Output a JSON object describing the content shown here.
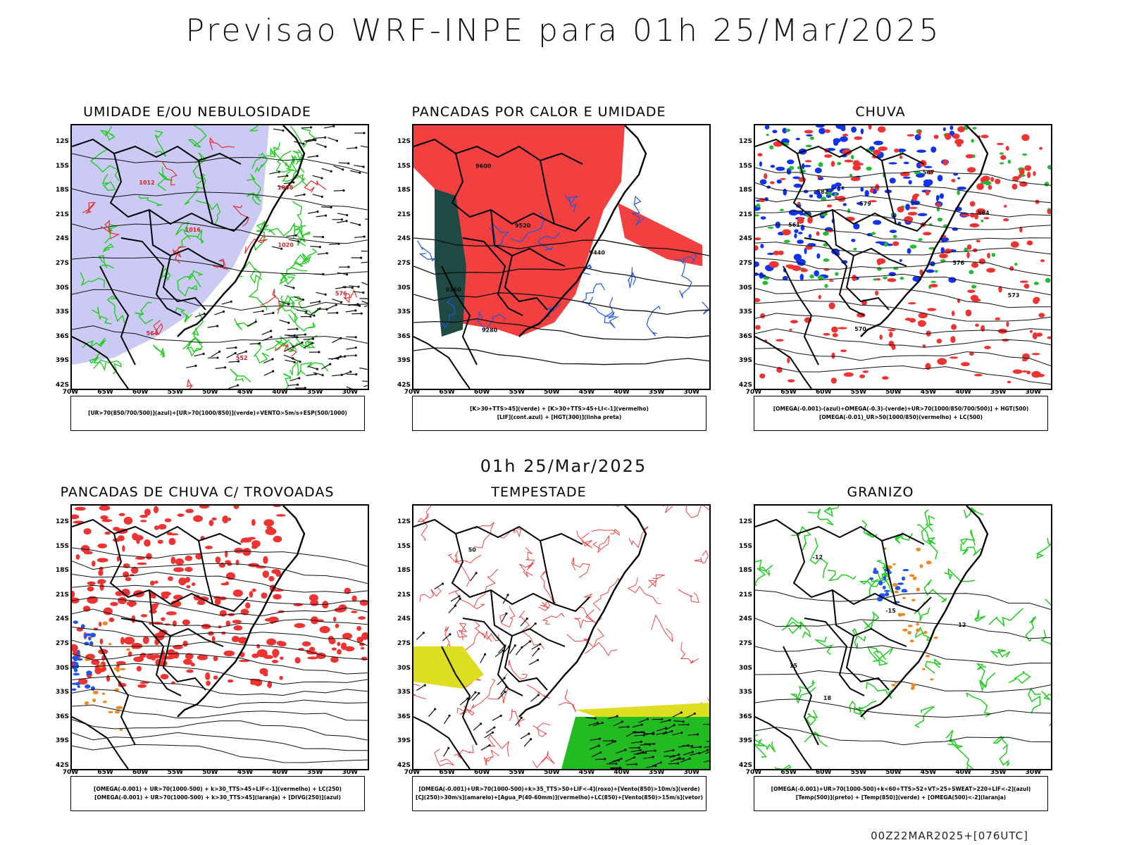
{
  "title": "Previsao WRF-INPE  para 01h 25/Mar/2025",
  "mid_title": "01h 25/Mar/2025",
  "footer": "00Z22MAR2025+[076UTC]",
  "lat_labels": [
    "12S",
    "15S",
    "18S",
    "21S",
    "24S",
    "27S",
    "30S",
    "33S",
    "36S",
    "39S",
    "42S"
  ],
  "lon_labels": [
    "70W",
    "65W",
    "60W",
    "55W",
    "50W",
    "45W",
    "40W",
    "35W",
    "30W"
  ],
  "panels": [
    {
      "title": "UMIDADE E/OU NEBULOSIDADE",
      "legend": [
        "[UR>70(850/700/500)](azul)+[UR>70(1000/850)](verde)+VENTO>5m/s+ESP(500/1000)"
      ],
      "contour_labels": [
        "1012",
        "1016",
        "1020",
        "576",
        "564",
        "552",
        "1008"
      ]
    },
    {
      "title": "PANCADAS POR CALOR E UMIDADE",
      "legend": [
        "[K>30+TTS>45](verde) + [K>30+TTS>45+LI<-1](vermelho)",
        "[LIF](cont.azul) + [HGT(300)](linha preta)"
      ],
      "contour_labels": [
        "9600",
        "9520",
        "9440",
        "9360",
        "9280"
      ]
    },
    {
      "title": "CHUVA",
      "legend": [
        "[OMEGA(-0.001)-(azul)+OMEGA(-0.3)-(verde)+UR>70(1000/850/700/500)] + HGT(500)",
        "[OMEGA(-0.01)_UR>50(1000/850)(vermelho) + LC(500)"
      ],
      "contour_labels": [
        "582",
        "579",
        "576",
        "573",
        "570",
        "567",
        "564",
        "561"
      ]
    },
    {
      "title": "PANCADAS DE CHUVA C/ TROVOADAS",
      "legend": [
        "[OMEGA(-0.001) + UR>70(1000-500) + k>30_TTS>45+LIF<-1](vermelho) + LC(250)",
        "[OMEGA(-0.001) + UR>70(1000-500) + k>30_TTS>45](laranja) + [DIVG(250)](azul)"
      ],
      "contour_labels": []
    },
    {
      "title": "TEMPESTADE",
      "legend": [
        "[OMEGA(-0.001)+UR>70(1000-500)+k>35_TTS>50+LIF<-4](roxo)+[Vento(850)>10m/s](verde)",
        "[CJ(250)>30m/s](amarelo)+[Agua_P(40-60mm)](vermelho)+LC(850)+[Vento(850)>15m/s](vetor)"
      ],
      "contour_labels": [
        "50"
      ]
    },
    {
      "title": "GRANIZO",
      "legend": [
        "[OMEGA(-0.001)+UR>70(1000-500)+k<60+TTS>52+VT>25+SWEAT>220+LIF<-2](azul)",
        "[Temp(500)](preto) + [Temp(850)](verde) + [OMEGA(500)<-2](laranja)"
      ],
      "contour_labels": [
        "-12",
        "-15",
        "12",
        "15",
        "18"
      ]
    }
  ]
}
